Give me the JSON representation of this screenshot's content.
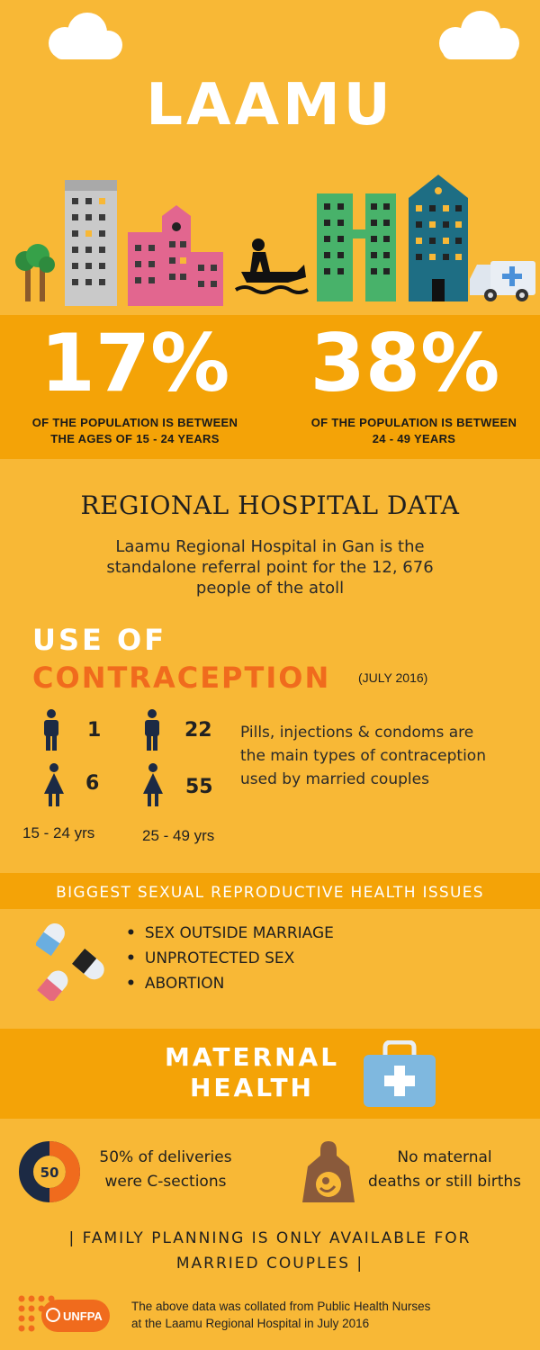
{
  "header": {
    "title": "LAAMU"
  },
  "population": {
    "left": {
      "value": "17%",
      "caption_line1": "OF THE POPULATION IS BETWEEN",
      "caption_line2": "THE AGES OF 15 - 24 YEARS"
    },
    "right": {
      "value": "38%",
      "caption_line1": "OF THE POPULATION IS BETWEEN",
      "caption_line2": "24 - 49 YEARS"
    }
  },
  "hospital": {
    "heading": "REGIONAL HOSPITAL DATA",
    "desc_line1": "Laamu Regional Hospital in Gan is the",
    "desc_line2": "standalone referral point for the 12, 676",
    "desc_line3": "people of the atoll"
  },
  "contraception": {
    "title_line1": "USE OF",
    "title_line2": "CONTRACEPTION",
    "date": "(JULY 2016)",
    "group_young": {
      "age_label": "15 - 24 yrs",
      "male_count": "1",
      "female_count": "6"
    },
    "group_adult": {
      "age_label": "25 - 49 yrs",
      "male_count": "22",
      "female_count": "55"
    },
    "note_line1": "Pills, injections & condoms are",
    "note_line2": "the main types of  contraception",
    "note_line3": "used by married  couples"
  },
  "issues": {
    "title": "BIGGEST SEXUAL REPRODUCTIVE HEALTH  ISSUES",
    "items": [
      "SEX OUTSIDE MARRIAGE",
      "UNPROTECTED SEX",
      "ABORTION"
    ]
  },
  "maternal": {
    "title_line1": "MATERNAL",
    "title_line2": "HEALTH",
    "csection": {
      "donut_value": "50",
      "fraction": 0.5,
      "text_line1": "50% of deliveries",
      "text_line2": "were C-sections"
    },
    "deaths": {
      "text_line1": "No maternal",
      "text_line2": "deaths or still births"
    }
  },
  "family_planning": {
    "line1": "| FAMILY PLANNING IS ONLY AVAILABLE FOR",
    "line2": "MARRIED COUPLES |"
  },
  "footer": {
    "logo_text": "UNFPA",
    "note_line1": "The above data was collated from Public Health Nurses",
    "note_line2": "at the Laamu Regional Hospital in July 2016"
  },
  "icons": [
    "cloud-icon",
    "tree-icon",
    "building-icon",
    "jetski-icon",
    "ambulance-icon",
    "male-icon",
    "female-icon",
    "pill-icon",
    "medical-kit-icon",
    "pregnant-woman-icon",
    "unfpa-logo"
  ],
  "colors": {
    "background": "#f8b836",
    "band": "#f4a307",
    "accent_orange": "#f06b1d",
    "dark_navy": "#1c2a44",
    "kit_blue": "#7fb8df"
  }
}
